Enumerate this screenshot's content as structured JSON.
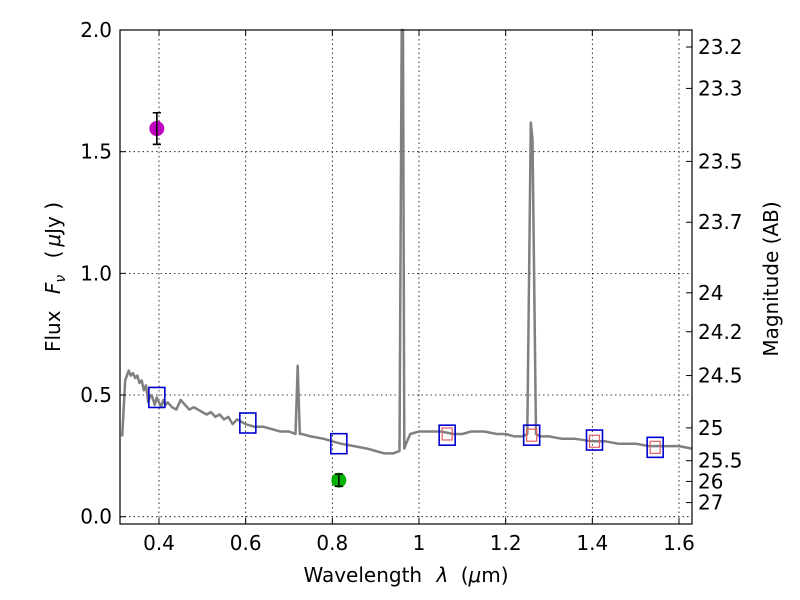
{
  "chart_data": {
    "type": "scatter",
    "xlabel_prefix": "Wavelength",
    "xlabel_symbol": "λ",
    "xlabel_unit_open": "(",
    "xlabel_unit_mu": "μ",
    "xlabel_unit_rest": "m)",
    "ylabel_prefix": "Flux",
    "ylabel_symbol": "F",
    "ylabel_subscript": "ν",
    "ylabel_unit_open": "(",
    "ylabel_unit_mu": "μ",
    "ylabel_unit_rest": "Jy )",
    "y2label": "Magnitude (AB)",
    "xlim": [
      0.31,
      1.63
    ],
    "ylim": [
      -0.03,
      2.0
    ],
    "x_ticks": [
      0.4,
      0.6,
      0.8,
      1.0,
      1.2,
      1.4,
      1.6
    ],
    "x_tick_labels": [
      "0.4",
      "0.6",
      "0.8",
      "1",
      "1.2",
      "1.4",
      "1.6"
    ],
    "y_ticks": [
      0.0,
      0.5,
      1.0,
      1.5,
      2.0
    ],
    "y_tick_labels": [
      "0.0",
      "0.5",
      "1.0",
      "1.5",
      "2.0"
    ],
    "mag_ticks": [
      {
        "flux": 1.93,
        "label": "23.2"
      },
      {
        "flux": 1.76,
        "label": "23.3"
      },
      {
        "flux": 1.46,
        "label": "23.5"
      },
      {
        "flux": 1.21,
        "label": "23.7"
      },
      {
        "flux": 0.92,
        "label": "24"
      },
      {
        "flux": 0.76,
        "label": "24.2"
      },
      {
        "flux": 0.58,
        "label": "24.5"
      },
      {
        "flux": 0.365,
        "label": "25"
      },
      {
        "flux": 0.23,
        "label": "25.5"
      },
      {
        "flux": 0.145,
        "label": "26"
      },
      {
        "flux": 0.058,
        "label": "27"
      }
    ],
    "grid": true,
    "series": [
      {
        "name": "model-spectrum",
        "kind": "line",
        "color": "#808080",
        "x": [
          0.315,
          0.322,
          0.326,
          0.33,
          0.335,
          0.34,
          0.345,
          0.35,
          0.355,
          0.36,
          0.365,
          0.37,
          0.375,
          0.38,
          0.385,
          0.39,
          0.395,
          0.4,
          0.405,
          0.41,
          0.415,
          0.42,
          0.43,
          0.44,
          0.45,
          0.46,
          0.47,
          0.48,
          0.49,
          0.5,
          0.51,
          0.52,
          0.53,
          0.54,
          0.55,
          0.56,
          0.57,
          0.58,
          0.6,
          0.62,
          0.64,
          0.66,
          0.68,
          0.7,
          0.715,
          0.72,
          0.725,
          0.73,
          0.75,
          0.78,
          0.8,
          0.82,
          0.85,
          0.88,
          0.9,
          0.92,
          0.94,
          0.955,
          0.96,
          0.963,
          0.966,
          0.97,
          0.98,
          1.0,
          1.02,
          1.05,
          1.08,
          1.1,
          1.12,
          1.15,
          1.18,
          1.2,
          1.22,
          1.24,
          1.25,
          1.258,
          1.262,
          1.27,
          1.28,
          1.3,
          1.33,
          1.36,
          1.4,
          1.43,
          1.46,
          1.5,
          1.53,
          1.56,
          1.6,
          1.63
        ],
        "y": [
          0.33,
          0.56,
          0.58,
          0.6,
          0.58,
          0.59,
          0.57,
          0.58,
          0.55,
          0.56,
          0.52,
          0.54,
          0.47,
          0.5,
          0.49,
          0.46,
          0.49,
          0.47,
          0.45,
          0.48,
          0.46,
          0.47,
          0.45,
          0.44,
          0.48,
          0.46,
          0.44,
          0.45,
          0.44,
          0.43,
          0.42,
          0.43,
          0.41,
          0.42,
          0.4,
          0.41,
          0.38,
          0.4,
          0.38,
          0.37,
          0.37,
          0.36,
          0.35,
          0.35,
          0.34,
          0.62,
          0.34,
          0.34,
          0.33,
          0.32,
          0.31,
          0.3,
          0.29,
          0.28,
          0.27,
          0.26,
          0.26,
          0.27,
          2.0,
          2.0,
          0.28,
          0.3,
          0.34,
          0.35,
          0.35,
          0.35,
          0.34,
          0.34,
          0.35,
          0.35,
          0.34,
          0.34,
          0.33,
          0.33,
          0.34,
          1.62,
          1.55,
          0.34,
          0.33,
          0.33,
          0.32,
          0.32,
          0.31,
          0.31,
          0.3,
          0.3,
          0.29,
          0.29,
          0.29,
          0.28
        ]
      },
      {
        "name": "observed-violet",
        "kind": "point",
        "color": "#bf00bf",
        "x": [
          0.395
        ],
        "y": [
          1.595
        ],
        "yerr": [
          0.065
        ]
      },
      {
        "name": "observed-green",
        "kind": "point",
        "color": "#00b300",
        "x": [
          0.815
        ],
        "y": [
          0.15
        ],
        "yerr": [
          0.025
        ]
      },
      {
        "name": "synthetic-model-fluxes",
        "kind": "square",
        "color": "#0000cc",
        "x": [
          0.395,
          0.605,
          0.815,
          1.065,
          1.26,
          1.405,
          1.545
        ],
        "y": [
          0.49,
          0.385,
          0.3,
          0.335,
          0.335,
          0.315,
          0.285
        ]
      },
      {
        "name": "synthetic-fluxes-inner",
        "kind": "small-square",
        "color": "#e06060",
        "x": [
          1.065,
          1.26,
          1.405,
          1.545
        ],
        "y": [
          0.34,
          0.335,
          0.31,
          0.285
        ]
      }
    ]
  }
}
